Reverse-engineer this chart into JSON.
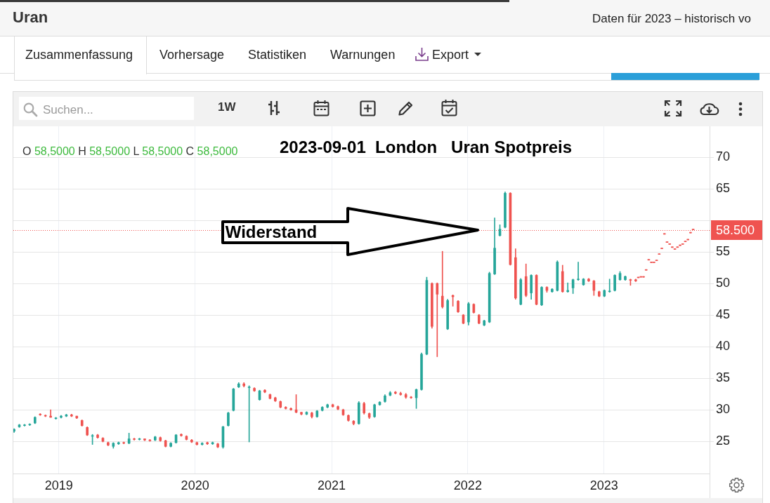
{
  "chart_data": {
    "type": "candlestick",
    "title": "Uran",
    "subtitle": "Daten für 2023 – historisch vo",
    "x": [
      "2018-09-03",
      "2018-09-17",
      "2018-10-01",
      "2018-10-15",
      "2018-10-29",
      "2018-11-12",
      "2018-11-26",
      "2018-12-10",
      "2018-12-24",
      "2019-01-07",
      "2019-01-21",
      "2019-02-04",
      "2019-02-18",
      "2019-03-04",
      "2019-03-18",
      "2019-04-01",
      "2019-04-15",
      "2019-04-29",
      "2019-05-13",
      "2019-05-27",
      "2019-06-10",
      "2019-06-24",
      "2019-07-08",
      "2019-07-22",
      "2019-08-05",
      "2019-08-19",
      "2019-09-02",
      "2019-09-16",
      "2019-09-30",
      "2019-10-14",
      "2019-10-28",
      "2019-11-11",
      "2019-11-25",
      "2019-12-09",
      "2019-12-23",
      "2020-01-06",
      "2020-01-20",
      "2020-02-03",
      "2020-02-17",
      "2020-03-02",
      "2020-03-16",
      "2020-03-30",
      "2020-04-13",
      "2020-04-27",
      "2020-05-11",
      "2020-05-25",
      "2020-06-08",
      "2020-06-22",
      "2020-07-06",
      "2020-07-20",
      "2020-08-03",
      "2020-08-17",
      "2020-08-31",
      "2020-09-14",
      "2020-09-28",
      "2020-10-12",
      "2020-10-26",
      "2020-11-09",
      "2020-11-23",
      "2020-12-07",
      "2020-12-21",
      "2021-01-04",
      "2021-01-18",
      "2021-02-01",
      "2021-02-15",
      "2021-03-01",
      "2021-03-15",
      "2021-03-29",
      "2021-04-12",
      "2021-04-26",
      "2021-05-10",
      "2021-05-24",
      "2021-06-07",
      "2021-06-21",
      "2021-07-05",
      "2021-07-19",
      "2021-08-02",
      "2021-08-16",
      "2021-08-30",
      "2021-09-13",
      "2021-09-27",
      "2021-10-11",
      "2021-10-25",
      "2021-11-08",
      "2021-11-22",
      "2021-12-06",
      "2021-12-20",
      "2022-01-03",
      "2022-01-17",
      "2022-01-31",
      "2022-02-14",
      "2022-02-28",
      "2022-03-14",
      "2022-03-28",
      "2022-04-11",
      "2022-04-25",
      "2022-05-09",
      "2022-05-23",
      "2022-06-06",
      "2022-06-20",
      "2022-07-04",
      "2022-07-18",
      "2022-08-01",
      "2022-08-15",
      "2022-08-29",
      "2022-09-12",
      "2022-09-26",
      "2022-10-10",
      "2022-10-24",
      "2022-11-07",
      "2022-11-21",
      "2022-12-05",
      "2022-12-19",
      "2023-01-02",
      "2023-01-16",
      "2023-01-30",
      "2023-02-13",
      "2023-02-27",
      "2023-03-13",
      "2023-03-27",
      "2023-04-03",
      "2023-04-10",
      "2023-04-17",
      "2023-04-24",
      "2023-05-01",
      "2023-05-08",
      "2023-05-15",
      "2023-05-22",
      "2023-05-29",
      "2023-06-05",
      "2023-06-12",
      "2023-06-19",
      "2023-06-26",
      "2023-07-03",
      "2023-07-10",
      "2023-07-17",
      "2023-07-24",
      "2023-07-31",
      "2023-08-07",
      "2023-08-14",
      "2023-08-21",
      "2023-08-28"
    ],
    "ohlc": [
      [
        26.6,
        27.0,
        26.4,
        26.9
      ],
      [
        27.3,
        27.7,
        27.2,
        27.6
      ],
      [
        27.5,
        27.7,
        27.4,
        27.6
      ],
      [
        27.6,
        27.8,
        27.5,
        27.7
      ],
      [
        27.9,
        28.9,
        27.8,
        28.8
      ],
      [
        29.3,
        29.4,
        29.1,
        29.2
      ],
      [
        29.1,
        29.2,
        28.9,
        29.0
      ],
      [
        29.0,
        30.0,
        28.8,
        28.8
      ],
      [
        28.6,
        28.8,
        28.5,
        28.7
      ],
      [
        28.8,
        29.1,
        28.7,
        29.0
      ],
      [
        29.0,
        29.3,
        28.9,
        29.2
      ],
      [
        29.2,
        29.3,
        28.9,
        29.0
      ],
      [
        29.0,
        29.0,
        28.6,
        28.7
      ],
      [
        28.3,
        28.4,
        27.4,
        27.5
      ],
      [
        27.2,
        27.3,
        25.9,
        26.0
      ],
      [
        25.8,
        26.1,
        24.5,
        25.9
      ],
      [
        26.0,
        26.1,
        25.5,
        25.6
      ],
      [
        25.5,
        25.6,
        24.9,
        25.0
      ],
      [
        24.8,
        24.9,
        24.3,
        24.4
      ],
      [
        24.2,
        24.8,
        23.9,
        24.7
      ],
      [
        24.6,
        24.9,
        24.5,
        24.8
      ],
      [
        24.8,
        24.9,
        24.6,
        24.7
      ],
      [
        24.7,
        26.3,
        24.6,
        25.4
      ],
      [
        25.4,
        25.5,
        25.2,
        25.3
      ],
      [
        25.3,
        25.5,
        25.2,
        25.4
      ],
      [
        25.4,
        25.4,
        25.1,
        25.2
      ],
      [
        25.2,
        25.3,
        25.0,
        25.1
      ],
      [
        25.2,
        25.8,
        25.1,
        25.7
      ],
      [
        25.6,
        25.7,
        25.0,
        25.1
      ],
      [
        25.1,
        25.2,
        24.1,
        24.2
      ],
      [
        24.2,
        24.8,
        24.1,
        24.7
      ],
      [
        24.8,
        26.1,
        24.7,
        26.0
      ],
      [
        26.1,
        26.2,
        25.8,
        25.9
      ],
      [
        25.8,
        25.9,
        25.2,
        25.3
      ],
      [
        25.2,
        25.3,
        24.8,
        24.9
      ],
      [
        24.8,
        24.9,
        24.4,
        24.5
      ],
      [
        24.5,
        24.8,
        24.4,
        24.7
      ],
      [
        24.8,
        24.9,
        24.5,
        24.6
      ],
      [
        24.6,
        24.9,
        24.5,
        24.8
      ],
      [
        24.6,
        24.7,
        24.0,
        24.1
      ],
      [
        24.1,
        27.4,
        23.9,
        27.3
      ],
      [
        27.5,
        29.6,
        27.4,
        29.5
      ],
      [
        29.9,
        33.4,
        29.8,
        33.3
      ],
      [
        33.6,
        34.3,
        33.5,
        34.1
      ],
      [
        34.1,
        34.3,
        33.6,
        33.8
      ],
      [
        33.5,
        33.8,
        24.9,
        33.6
      ],
      [
        33.4,
        33.5,
        32.9,
        33.0
      ],
      [
        31.6,
        33.1,
        31.5,
        33.0
      ],
      [
        33.1,
        33.2,
        32.7,
        32.8
      ],
      [
        32.4,
        32.5,
        31.7,
        31.8
      ],
      [
        31.9,
        32.0,
        31.3,
        31.4
      ],
      [
        31.3,
        31.4,
        30.3,
        30.4
      ],
      [
        30.4,
        30.5,
        30.1,
        30.2
      ],
      [
        30.2,
        30.3,
        29.9,
        30.0
      ],
      [
        30.0,
        32.4,
        29.5,
        29.6
      ],
      [
        29.6,
        29.6,
        29.2,
        29.3
      ],
      [
        29.3,
        29.7,
        29.2,
        29.6
      ],
      [
        29.5,
        29.6,
        28.7,
        28.9
      ],
      [
        28.9,
        29.9,
        28.8,
        29.8
      ],
      [
        29.9,
        30.5,
        29.8,
        30.4
      ],
      [
        30.4,
        30.9,
        30.3,
        30.8
      ],
      [
        30.8,
        30.9,
        30.4,
        30.5
      ],
      [
        30.5,
        30.6,
        30.0,
        30.1
      ],
      [
        30.0,
        30.1,
        29.1,
        29.2
      ],
      [
        29.1,
        29.2,
        28.2,
        28.3
      ],
      [
        28.2,
        28.3,
        27.6,
        27.8
      ],
      [
        27.8,
        31.3,
        27.7,
        31.1
      ],
      [
        31.0,
        31.2,
        29.3,
        29.5
      ],
      [
        29.4,
        29.5,
        28.6,
        28.8
      ],
      [
        28.9,
        30.9,
        28.8,
        30.8
      ],
      [
        30.8,
        31.3,
        30.7,
        31.2
      ],
      [
        31.3,
        32.4,
        31.2,
        32.2
      ],
      [
        32.3,
        32.9,
        32.2,
        32.7
      ],
      [
        32.8,
        32.9,
        32.5,
        32.6
      ],
      [
        32.6,
        32.8,
        32.3,
        32.4
      ],
      [
        32.4,
        32.6,
        31.8,
        32.0
      ],
      [
        32.0,
        32.1,
        31.8,
        31.9
      ],
      [
        31.9,
        33.3,
        30.2,
        33.2
      ],
      [
        33.2,
        39.0,
        33.1,
        38.8
      ],
      [
        38.8,
        51.0,
        38.7,
        50.5
      ],
      [
        50.0,
        50.1,
        42.9,
        43.2
      ],
      [
        50.0,
        50.1,
        38.4,
        48.3
      ],
      [
        48.0,
        55.1,
        46.1,
        46.3
      ],
      [
        42.8,
        47.5,
        42.7,
        47.3
      ],
      [
        48.1,
        48.2,
        46.4,
        47.9
      ],
      [
        47.2,
        47.3,
        45.4,
        45.5
      ],
      [
        45.0,
        45.1,
        43.6,
        43.7
      ],
      [
        43.9,
        47.0,
        43.4,
        46.8
      ],
      [
        46.7,
        46.8,
        45.3,
        45.4
      ],
      [
        45.0,
        45.1,
        43.6,
        43.7
      ],
      [
        43.4,
        44.2,
        43.3,
        44.1
      ],
      [
        43.9,
        51.8,
        43.8,
        51.6
      ],
      [
        51.5,
        60.4,
        51.4,
        55.6
      ],
      [
        57.6,
        59.3,
        57.5,
        58.6
      ],
      [
        58.9,
        64.5,
        58.8,
        64.3
      ],
      [
        64.3,
        64.4,
        52.9,
        53.0
      ],
      [
        54.1,
        55.5,
        47.5,
        47.7
      ],
      [
        46.7,
        50.8,
        46.6,
        50.6
      ],
      [
        51.1,
        53.1,
        47.9,
        48.1
      ],
      [
        48.5,
        51.4,
        47.5,
        51.3
      ],
      [
        51.3,
        51.4,
        46.6,
        46.7
      ],
      [
        46.6,
        49.5,
        46.5,
        49.4
      ],
      [
        49.4,
        49.5,
        48.6,
        48.9
      ],
      [
        48.7,
        49.2,
        48.6,
        49.1
      ],
      [
        48.9,
        53.6,
        48.8,
        53.4
      ],
      [
        51.9,
        52.9,
        48.6,
        48.7
      ],
      [
        48.7,
        50.1,
        48.6,
        48.9
      ],
      [
        49.3,
        50.7,
        48.4,
        50.6
      ],
      [
        50.6,
        53.4,
        50.5,
        50.7
      ],
      [
        49.8,
        50.8,
        49.7,
        50.7
      ],
      [
        50.7,
        50.8,
        50.3,
        50.4
      ],
      [
        50.4,
        50.5,
        48.1,
        48.9
      ],
      [
        48.7,
        48.8,
        47.9,
        48.0
      ],
      [
        48.0,
        49.0,
        47.9,
        48.9
      ],
      [
        48.7,
        50.7,
        48.6,
        48.8
      ],
      [
        48.9,
        51.4,
        48.8,
        51.3
      ],
      [
        50.6,
        51.9,
        50.5,
        51.6
      ],
      [
        50.6,
        51.2,
        50.5,
        51.1
      ],
      [
        50.6,
        50.7,
        49.7,
        50.5
      ],
      [
        50.6,
        50.7,
        50.3,
        50.4
      ],
      [
        50.9,
        50.9,
        50.9,
        50.9
      ],
      [
        51.0,
        51.0,
        51.0,
        51.0
      ],
      [
        51.0,
        51.0,
        51.0,
        51.0
      ],
      [
        52.1,
        52.1,
        52.1,
        52.1
      ],
      [
        53.7,
        53.7,
        53.7,
        53.7
      ],
      [
        53.3,
        53.3,
        53.3,
        53.3
      ],
      [
        53.3,
        53.3,
        53.3,
        53.3
      ],
      [
        53.6,
        53.6,
        53.6,
        53.6
      ],
      [
        54.6,
        54.6,
        54.6,
        54.6
      ],
      [
        55.5,
        55.5,
        55.5,
        55.5
      ],
      [
        57.8,
        57.8,
        57.8,
        57.8
      ],
      [
        56.5,
        56.5,
        56.5,
        56.5
      ],
      [
        56.2,
        56.2,
        56.2,
        56.2
      ],
      [
        55.7,
        55.7,
        55.7,
        55.7
      ],
      [
        55.4,
        55.4,
        55.4,
        55.4
      ],
      [
        55.7,
        55.7,
        55.7,
        55.7
      ],
      [
        56.0,
        56.0,
        56.0,
        56.0
      ],
      [
        56.2,
        56.2,
        56.2,
        56.2
      ],
      [
        56.6,
        56.6,
        56.6,
        56.6
      ],
      [
        56.9,
        56.9,
        56.9,
        56.9
      ],
      [
        58.0,
        58.0,
        58.0,
        58.0
      ],
      [
        58.5,
        58.5,
        58.5,
        58.5
      ]
    ],
    "colors": [
      "#26a69a",
      "#26a69a",
      "#26a69a",
      "#26a69a",
      "#26a69a",
      "#ef5350",
      "#ef5350",
      "#ef5350",
      "#26a69a",
      "#26a69a",
      "#26a69a",
      "#ef5350",
      "#ef5350",
      "#ef5350",
      "#ef5350",
      "#26a69a",
      "#ef5350",
      "#ef5350",
      "#ef5350",
      "#26a69a",
      "#26a69a",
      "#ef5350",
      "#26a69a",
      "#ef5350",
      "#26a69a",
      "#ef5350",
      "#ef5350",
      "#26a69a",
      "#ef5350",
      "#ef5350",
      "#26a69a",
      "#26a69a",
      "#ef5350",
      "#ef5350",
      "#ef5350",
      "#ef5350",
      "#26a69a",
      "#ef5350",
      "#26a69a",
      "#ef5350",
      "#26a69a",
      "#26a69a",
      "#26a69a",
      "#26a69a",
      "#ef5350",
      "#26a69a",
      "#ef5350",
      "#26a69a",
      "#ef5350",
      "#ef5350",
      "#ef5350",
      "#ef5350",
      "#ef5350",
      "#ef5350",
      "#ef5350",
      "#ef5350",
      "#26a69a",
      "#ef5350",
      "#26a69a",
      "#26a69a",
      "#26a69a",
      "#ef5350",
      "#ef5350",
      "#ef5350",
      "#ef5350",
      "#ef5350",
      "#26a69a",
      "#ef5350",
      "#ef5350",
      "#26a69a",
      "#26a69a",
      "#26a69a",
      "#26a69a",
      "#ef5350",
      "#ef5350",
      "#ef5350",
      "#ef5350",
      "#26a69a",
      "#26a69a",
      "#26a69a",
      "#ef5350",
      "#ef5350",
      "#ef5350",
      "#26a69a",
      "#ef5350",
      "#ef5350",
      "#ef5350",
      "#26a69a",
      "#ef5350",
      "#ef5350",
      "#26a69a",
      "#26a69a",
      "#26a69a",
      "#26a69a",
      "#26a69a",
      "#ef5350",
      "#ef5350",
      "#26a69a",
      "#ef5350",
      "#26a69a",
      "#ef5350",
      "#26a69a",
      "#ef5350",
      "#26a69a",
      "#26a69a",
      "#ef5350",
      "#26a69a",
      "#26a69a",
      "#26a69a",
      "#26a69a",
      "#ef5350",
      "#ef5350",
      "#ef5350",
      "#26a69a",
      "#26a69a",
      "#26a69a",
      "#26a69a",
      "#26a69a",
      "#ef5350",
      "#ef5350",
      "#ef5350",
      "#ef5350",
      "#ef5350",
      "#ef5350",
      "#ef5350",
      "#ef5350",
      "#ef5350",
      "#ef5350",
      "#ef5350",
      "#ef5350",
      "#ef5350",
      "#ef5350",
      "#ef5350",
      "#ef5350",
      "#ef5350",
      "#ef5350",
      "#ef5350",
      "#ef5350",
      "#ef5350",
      "#ef5350",
      "#ef5350",
      "#ef5350"
    ],
    "xlim": [
      "2018-09-01",
      "2023-10-11"
    ],
    "xticks": [
      "2019",
      "2020",
      "2021",
      "2022",
      "2023"
    ],
    "ylim": [
      19.9,
      74.9
    ],
    "yticks": [
      25,
      30,
      35,
      40,
      45,
      50,
      55,
      {
        "value": 60,
        "label": null
      },
      65,
      70
    ],
    "grid": true,
    "ref_lines": [
      {
        "axis": "y",
        "value": 58.5,
        "label": "58.500",
        "color": "#ef5350",
        "line_style": "dotted"
      }
    ],
    "annotations": [
      "Zusammenfassung",
      "Vorhersage",
      "Statistiken",
      "Warnungen",
      "Export",
      "Suchen...",
      "1W",
      "O 58,5000 H 58,5000 L 58,5000 C 58,5000",
      "2023-09-01  London   Uran Spotpreis",
      {
        "text": "Widerstand",
        "x": "2020-07-23",
        "y": 58.5
      }
    ]
  }
}
